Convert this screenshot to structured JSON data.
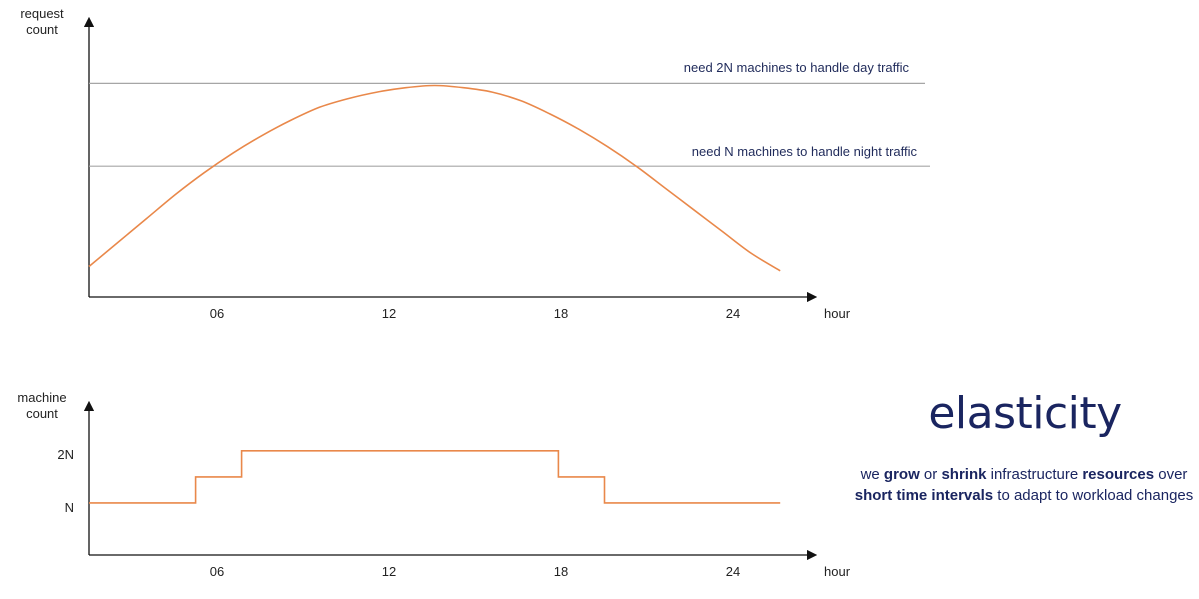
{
  "chart_data": [
    {
      "type": "line",
      "ylabel": "request\ncount",
      "xlabel": "hour",
      "x_ticks": [
        "06",
        "12",
        "18",
        "24"
      ],
      "xlim": [
        0,
        25
      ],
      "ylim": [
        0,
        1.0
      ],
      "grid": false,
      "series": [
        {
          "x": [
            0,
            1,
            2,
            3,
            4,
            5,
            6,
            7,
            8,
            9,
            10,
            11,
            12,
            13,
            14,
            15,
            16,
            17,
            18,
            19,
            20,
            21,
            22,
            23,
            24
          ],
          "y": [
            0.14,
            0.25,
            0.36,
            0.47,
            0.57,
            0.66,
            0.74,
            0.81,
            0.87,
            0.91,
            0.94,
            0.96,
            0.97,
            0.96,
            0.94,
            0.9,
            0.84,
            0.77,
            0.69,
            0.6,
            0.5,
            0.4,
            0.3,
            0.2,
            0.12
          ],
          "color": "#e9884a"
        }
      ],
      "reference_lines": [
        {
          "y": 0.98,
          "label": "need 2N machines to handle day traffic",
          "color": "#a6a6a6"
        },
        {
          "y": 0.6,
          "label": "need N machines to handle night traffic",
          "color": "#a6a6a6"
        }
      ]
    },
    {
      "type": "line",
      "ylabel": "machine\ncount",
      "xlabel": "hour",
      "x_ticks": [
        "06",
        "12",
        "18",
        "24"
      ],
      "y_ticks": [
        "N",
        "2N"
      ],
      "xlim": [
        0,
        25
      ],
      "ylim": [
        0,
        2.4
      ],
      "grid": false,
      "step": true,
      "series": [
        {
          "x": [
            0,
            3.7,
            3.7,
            5.3,
            5.3,
            16.3,
            16.3,
            17.9,
            17.9,
            24
          ],
          "y": [
            1,
            1,
            1.5,
            1.5,
            2,
            2,
            1.5,
            1.5,
            1,
            1
          ],
          "color": "#e9884a"
        }
      ]
    }
  ],
  "side_panel": {
    "title": "elasticity",
    "description": [
      {
        "text": "we ",
        "bold": false
      },
      {
        "text": "grow",
        "bold": true
      },
      {
        "text": " or ",
        "bold": false
      },
      {
        "text": "shrink",
        "bold": true
      },
      {
        "text": " infrastructure ",
        "bold": false
      },
      {
        "text": "resources",
        "bold": true
      },
      {
        "text": " over ",
        "bold": false
      },
      {
        "text": "short time intervals",
        "bold": true
      },
      {
        "text": " to adapt to workload changes",
        "bold": false
      }
    ]
  }
}
